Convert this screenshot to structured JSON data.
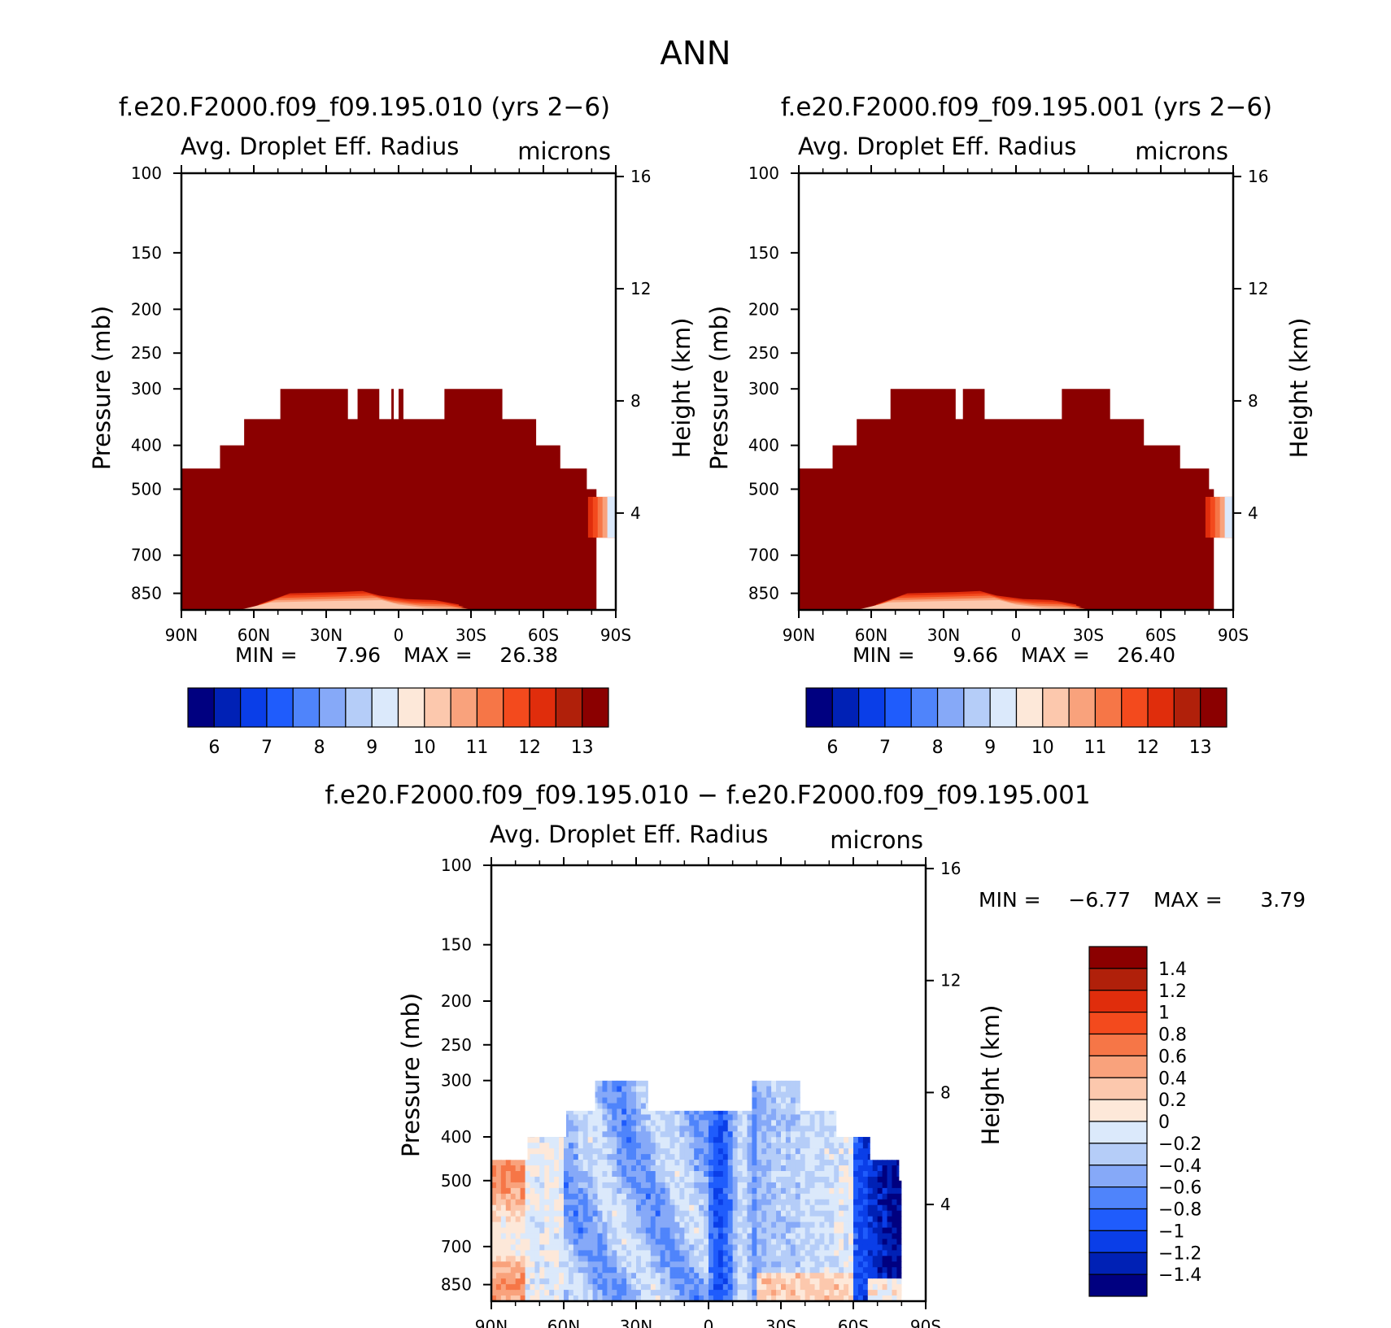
{
  "figure": {
    "title": "ANN"
  },
  "colors": {
    "absolute": [
      "#000080",
      "#0021b5",
      "#0a3ee8",
      "#1f5cfc",
      "#4f84fb",
      "#86a9f8",
      "#b5cdf8",
      "#dbe9fb",
      "#fde8d9",
      "#fcc8ad",
      "#f9a27c",
      "#f67647",
      "#f34a1d",
      "#e02d0c",
      "#b0200a",
      "#8b0000"
    ],
    "diff": [
      "#000080",
      "#0021b5",
      "#0a3ee8",
      "#1f5cfc",
      "#4f84fb",
      "#86a9f8",
      "#b5cdf8",
      "#dbe9fb",
      "#fde8d9",
      "#fcc8ad",
      "#f9a27c",
      "#f67647",
      "#f34a1d",
      "#e02d0c",
      "#b0200a",
      "#8b0000"
    ]
  },
  "chart_data": [
    {
      "id": "panel1",
      "type": "heatmap",
      "title": "f.e20.F2000.f09_f09.195.010 (yrs 2−6)",
      "variable": "Avg. Droplet Eff. Radius",
      "units": "microns",
      "ylabel": "Pressure (mb)",
      "y2label": "Height (km)",
      "x_ticks": [
        "90N",
        "60N",
        "30N",
        "0",
        "30S",
        "60S",
        "90S"
      ],
      "y_ticks": [
        100,
        150,
        200,
        250,
        300,
        400,
        500,
        700,
        850
      ],
      "y2_ticks": [
        16,
        12,
        8,
        4
      ],
      "xlim": [
        90,
        -90
      ],
      "ylim": [
        925,
        100
      ],
      "y_scale": "log",
      "stats": {
        "min_label": "MIN =",
        "min": "7.96",
        "max_label": "MAX =",
        "max": "26.38"
      },
      "colorbar_labels": [
        "6",
        "7",
        "8",
        "9",
        "10",
        "11",
        "12",
        "13"
      ],
      "cloud_top_profile": [
        [
          90,
          450
        ],
        [
          74,
          450
        ],
        [
          74,
          400
        ],
        [
          64,
          400
        ],
        [
          64,
          350
        ],
        [
          49,
          350
        ],
        [
          49,
          300
        ],
        [
          21,
          300
        ],
        [
          21,
          350
        ],
        [
          17,
          350
        ],
        [
          17,
          300
        ],
        [
          8,
          300
        ],
        [
          8,
          350
        ],
        [
          3,
          350
        ],
        [
          3,
          300
        ],
        [
          2,
          300
        ],
        [
          2,
          350
        ],
        [
          0,
          350
        ],
        [
          0,
          300
        ],
        [
          -2,
          300
        ],
        [
          -2,
          350
        ],
        [
          -19,
          350
        ],
        [
          -19,
          300
        ],
        [
          -43,
          300
        ],
        [
          -43,
          350
        ],
        [
          -57,
          350
        ],
        [
          -57,
          400
        ],
        [
          -67,
          400
        ],
        [
          -67,
          450
        ],
        [
          -78,
          450
        ],
        [
          -78,
          500
        ]
      ],
      "dominant_range": "> 13"
    },
    {
      "id": "panel2",
      "type": "heatmap",
      "title": "f.e20.F2000.f09_f09.195.001 (yrs 2−6)",
      "variable": "Avg. Droplet Eff. Radius",
      "units": "microns",
      "ylabel": "Pressure (mb)",
      "y2label": "Height (km)",
      "x_ticks": [
        "90N",
        "60N",
        "30N",
        "0",
        "30S",
        "60S",
        "90S"
      ],
      "y_ticks": [
        100,
        150,
        200,
        250,
        300,
        400,
        500,
        700,
        850
      ],
      "y2_ticks": [
        16,
        12,
        8,
        4
      ],
      "xlim": [
        90,
        -90
      ],
      "ylim": [
        925,
        100
      ],
      "y_scale": "log",
      "stats": {
        "min_label": "MIN =",
        "min": "9.66",
        "max_label": "MAX =",
        "max": "26.40"
      },
      "colorbar_labels": [
        "6",
        "7",
        "8",
        "9",
        "10",
        "11",
        "12",
        "13"
      ],
      "cloud_top_profile": [
        [
          90,
          450
        ],
        [
          76,
          450
        ],
        [
          76,
          400
        ],
        [
          66,
          400
        ],
        [
          66,
          350
        ],
        [
          52,
          350
        ],
        [
          52,
          300
        ],
        [
          25,
          300
        ],
        [
          25,
          350
        ],
        [
          22,
          350
        ],
        [
          22,
          300
        ],
        [
          13,
          300
        ],
        [
          13,
          350
        ],
        [
          -19,
          350
        ],
        [
          -19,
          300
        ],
        [
          -39,
          300
        ],
        [
          -39,
          350
        ],
        [
          -53,
          350
        ],
        [
          -53,
          400
        ],
        [
          -68,
          400
        ],
        [
          -68,
          450
        ],
        [
          -80,
          450
        ],
        [
          -80,
          500
        ]
      ],
      "dominant_range": "> 13"
    },
    {
      "id": "panel3",
      "type": "heatmap",
      "title": "f.e20.F2000.f09_f09.195.010 − f.e20.F2000.f09_f09.195.001",
      "variable": "Avg. Droplet Eff. Radius",
      "units": "microns",
      "ylabel": "Pressure (mb)",
      "y2label": "Height (km)",
      "x_ticks": [
        "90N",
        "60N",
        "30N",
        "0",
        "30S",
        "60S",
        "90S"
      ],
      "y_ticks": [
        100,
        150,
        200,
        250,
        300,
        400,
        500,
        700,
        850
      ],
      "y2_ticks": [
        16,
        12,
        8,
        4
      ],
      "xlim": [
        90,
        -90
      ],
      "ylim": [
        925,
        100
      ],
      "y_scale": "log",
      "stats": {
        "min_label": "MIN =",
        "min": "−6.77",
        "max_label": "MAX =",
        "max": "3.79"
      },
      "colorbar_labels": [
        "1.4",
        "1.2",
        "1",
        "0.8",
        "0.6",
        "0.4",
        "0.2",
        "0",
        "−0.2",
        "−0.4",
        "−0.6",
        "−0.8",
        "−1",
        "−1.2",
        "−1.4"
      ],
      "cloud_top_profile": [
        [
          90,
          450
        ],
        [
          75,
          450
        ],
        [
          75,
          400
        ],
        [
          59,
          400
        ],
        [
          59,
          350
        ],
        [
          47,
          350
        ],
        [
          47,
          300
        ],
        [
          25,
          300
        ],
        [
          25,
          350
        ],
        [
          -18,
          350
        ],
        [
          -18,
          300
        ],
        [
          -38,
          300
        ],
        [
          -38,
          350
        ],
        [
          -53,
          350
        ],
        [
          -53,
          400
        ],
        [
          -67,
          400
        ],
        [
          -67,
          450
        ],
        [
          -79,
          450
        ],
        [
          -79,
          500
        ]
      ]
    }
  ]
}
